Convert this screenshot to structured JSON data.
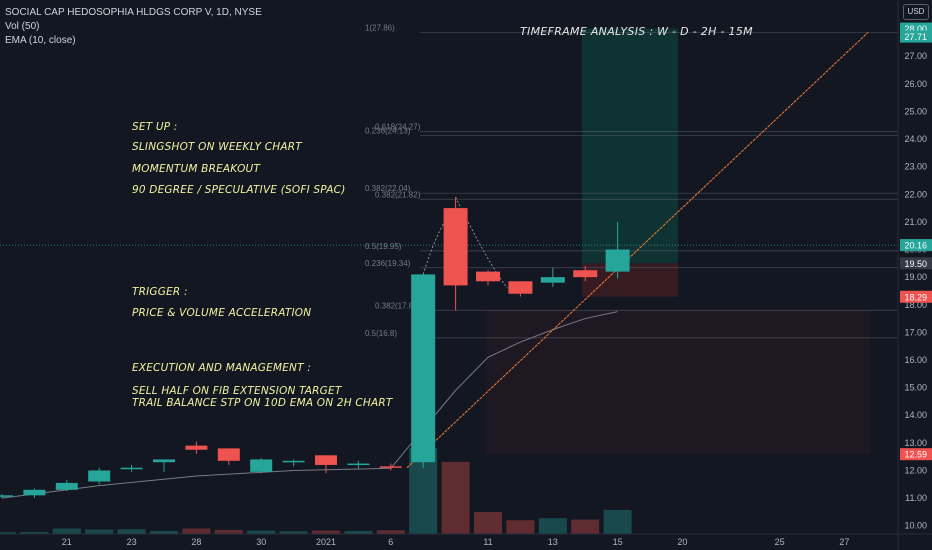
{
  "header": {
    "symbol_line": "SOCIAL CAP HEDOSOPHIA HLDGS CORP V, 1D, NYSE",
    "volume_line": "Vol (50)",
    "ema_line": "EMA (10, close)",
    "currency": "USD"
  },
  "annotations": {
    "title": "TIMEFRAME ANALYSIS  : W - D - 2H - 15M",
    "setup_heading": "SET UP :",
    "setup_1": "SLINGSHOT ON WEEKLY CHART",
    "setup_2": "MOMENTUM BREAKOUT",
    "setup_3": "90 DEGREE / SPECULATIVE (SOFI SPAC)",
    "trigger_heading": "TRIGGER :",
    "trigger_1": "PRICE & VOLUME ACCELERATION",
    "exec_heading": "EXECUTION AND MANAGEMENT :",
    "exec_1": "SELL HALF ON FIB EXTENSION TARGET",
    "exec_2": "TRAIL BALANCE STP ON 10D EMA ON 2H CHART"
  },
  "colors": {
    "background": "#131722",
    "up": "#26a69a",
    "down": "#ef5350",
    "ema": "#787b86",
    "trend": "#f57c36",
    "text_note": "#f2f2a0",
    "target_zone": "#0f3a37",
    "stop_zone": "#3c1c22"
  },
  "chart_data": {
    "type": "candlestick",
    "title": "SOCIAL CAP HEDOSOPHIA HLDGS CORP V, 1D, NYSE",
    "y_axis": {
      "range": [
        9.7,
        28.6
      ],
      "ticks": [
        10,
        11,
        12,
        13,
        14,
        15,
        16,
        17,
        18,
        19,
        20,
        21,
        22,
        23,
        24,
        25,
        26,
        27
      ],
      "tick_labels": [
        "10.00",
        "11.00",
        "12.00",
        "13.00",
        "14.00",
        "15.00",
        "16.00",
        "17.00",
        "18.00",
        "19.00",
        "20.00",
        "21.00",
        "22.00",
        "23.00",
        "24.00",
        "25.00",
        "26.00",
        "27.00"
      ]
    },
    "x_axis": {
      "tick_labels": [
        "21",
        "23",
        "28",
        "30",
        "2021",
        "6",
        "11",
        "13",
        "15",
        "20",
        "25",
        "27"
      ],
      "tick_candle_index": [
        2,
        4,
        6,
        8,
        10,
        12,
        15,
        17,
        19,
        21,
        24,
        26
      ]
    },
    "candles": [
      {
        "o": 11.05,
        "h": 11.15,
        "l": 11.0,
        "c": 11.1
      },
      {
        "o": 11.1,
        "h": 11.35,
        "l": 11.0,
        "c": 11.3
      },
      {
        "o": 11.3,
        "h": 11.65,
        "l": 11.25,
        "c": 11.55
      },
      {
        "o": 11.6,
        "h": 12.1,
        "l": 11.5,
        "c": 12.0
      },
      {
        "o": 12.05,
        "h": 12.2,
        "l": 11.95,
        "c": 12.1
      },
      {
        "o": 12.3,
        "h": 12.4,
        "l": 11.95,
        "c": 12.4
      },
      {
        "o": 12.9,
        "h": 13.05,
        "l": 12.6,
        "c": 12.75
      },
      {
        "o": 12.8,
        "h": 12.8,
        "l": 12.2,
        "c": 12.35
      },
      {
        "o": 11.95,
        "h": 12.45,
        "l": 11.9,
        "c": 12.4
      },
      {
        "o": 12.35,
        "h": 12.4,
        "l": 12.15,
        "c": 12.35
      },
      {
        "o": 12.55,
        "h": 12.55,
        "l": 11.9,
        "c": 12.2
      },
      {
        "o": 12.2,
        "h": 12.35,
        "l": 12.05,
        "c": 12.25
      },
      {
        "o": 12.15,
        "h": 12.25,
        "l": 12.0,
        "c": 12.1
      },
      {
        "o": 12.3,
        "h": 19.1,
        "l": 12.1,
        "c": 19.1
      },
      {
        "o": 21.5,
        "h": 21.9,
        "l": 17.8,
        "c": 18.7
      },
      {
        "o": 19.2,
        "h": 19.25,
        "l": 18.7,
        "c": 18.85
      },
      {
        "o": 18.85,
        "h": 18.85,
        "l": 18.3,
        "c": 18.4
      },
      {
        "o": 18.8,
        "h": 19.35,
        "l": 18.65,
        "c": 19.0
      },
      {
        "o": 19.25,
        "h": 19.4,
        "l": 18.85,
        "c": 19.0
      },
      {
        "o": 19.2,
        "h": 21.0,
        "l": 18.95,
        "c": 20.0
      }
    ],
    "volume": [
      0.5,
      0.6,
      1.6,
      1.3,
      1.4,
      0.9,
      1.6,
      1.2,
      1.0,
      0.8,
      1.0,
      0.9,
      1.1,
      25.0,
      21.0,
      6.4,
      4.0,
      4.6,
      4.2,
      7.0
    ],
    "ema10": [
      [
        0,
        11.0
      ],
      [
        3,
        11.45
      ],
      [
        6,
        11.8
      ],
      [
        9,
        12.0
      ],
      [
        12,
        12.08
      ],
      [
        13,
        13.5
      ],
      [
        14,
        14.9
      ],
      [
        15,
        16.1
      ],
      [
        16,
        16.65
      ],
      [
        17,
        17.1
      ],
      [
        18,
        17.5
      ],
      [
        19,
        17.75
      ]
    ],
    "fib_levels": [
      {
        "label": "1(27.86)",
        "value": 27.86
      },
      {
        "label": "0.618(24.27)",
        "value": 24.27
      },
      {
        "label": "0.236(24.13)",
        "value": 24.13
      },
      {
        "label": "0.382(22.04)",
        "value": 22.04
      },
      {
        "label": "0.382(21.82)",
        "value": 21.82
      },
      {
        "label": "0.5(19.95)",
        "value": 19.95
      },
      {
        "label": "0.236(19.34)",
        "value": 19.34
      },
      {
        "label": "0.382(17.8)",
        "value": 17.8
      },
      {
        "label": "0.5(16.8)",
        "value": 16.8
      }
    ],
    "price_labels": [
      {
        "text": "28.00",
        "value": 28.0,
        "color": "#26a69a"
      },
      {
        "text": "27.71",
        "value": 27.71,
        "color": "#26a69a"
      },
      {
        "text": "20.16",
        "value": 20.16,
        "color": "#363a45"
      },
      {
        "text": "20.16",
        "value": 20.16,
        "color": "#26a69a"
      },
      {
        "text": "19.50",
        "value": 19.5,
        "color": "#363a45"
      },
      {
        "text": "18.29",
        "value": 18.29,
        "color": "#ef5350"
      },
      {
        "text": "12.59",
        "value": 12.59,
        "color": "#ef5350"
      }
    ],
    "target_zone": {
      "from_price": 19.5,
      "to_price": 28.0
    },
    "stop_zone": {
      "from_price": 18.29,
      "to_price": 19.5
    }
  }
}
